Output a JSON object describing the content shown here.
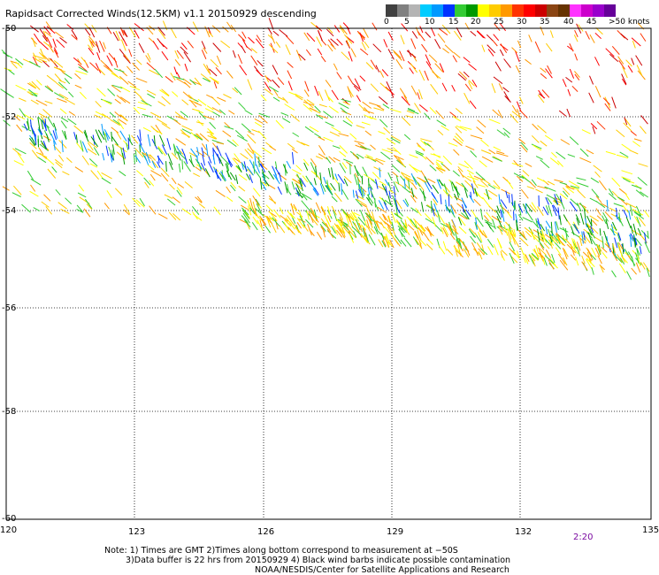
{
  "title": "Rapidsact Corrected Winds(12.5KM) v1.1 20150929 descending",
  "colorbar": {
    "colors": [
      "#404040",
      "#808080",
      "#b4b4b4",
      "#00ccff",
      "#0099ff",
      "#0033ff",
      "#33cc33",
      "#009900",
      "#ffff00",
      "#ffcc00",
      "#ff9900",
      "#ff3300",
      "#ff0000",
      "#cc0000",
      "#8b4513",
      "#663300",
      "#ff33ff",
      "#cc00cc",
      "#9900cc",
      "#660099"
    ],
    "labels": [
      "0",
      "5",
      "10",
      "15",
      "20",
      "25",
      "30",
      "35",
      "40",
      "45",
      ">50 knots"
    ]
  },
  "lat_labels": [
    "-50",
    "-52",
    "-54",
    "-56",
    "-58",
    "-60"
  ],
  "lon_labels": [
    "120",
    "123",
    "126",
    "129",
    "132",
    "135"
  ],
  "time_label": "2:20",
  "notes": {
    "line1": "Note: 1) Times are GMT 2)Times along bottom correspond to measurement at −50S",
    "line2": "3)Data buffer is 22 hrs from 20150929 4) Black wind barbs indicate possible contamination",
    "line3": "NOAA/NESDIS/Center for Satellite Applications and Research"
  }
}
